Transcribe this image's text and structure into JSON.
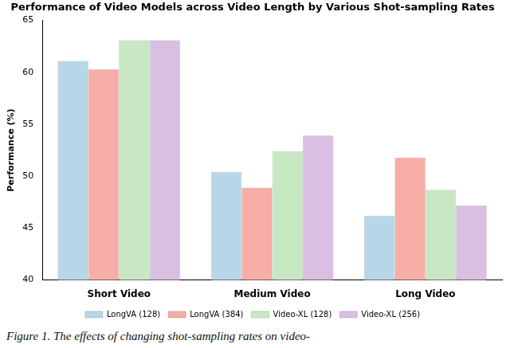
{
  "chart_data": {
    "type": "bar",
    "title": "Performance of Video Models across Video Length by Various Shot-sampling Rates",
    "y_label": "Performance (%)",
    "caption": "Figure 1. The effects of changing shot-sampling rates on video-",
    "categories": [
      "Short Video",
      "Medium Video",
      "Long Video"
    ],
    "series": [
      {
        "name": "LongVA (128)",
        "color": "#b7d7e8",
        "values": [
          61.1,
          50.4,
          46.2
        ]
      },
      {
        "name": "LongVA (384)",
        "color": "#f7aea6",
        "values": [
          60.3,
          48.9,
          51.8
        ]
      },
      {
        "name": "Video-XL (128)",
        "color": "#c8e8c4",
        "values": [
          63.1,
          52.4,
          48.7
        ]
      },
      {
        "name": "Video-XL (256)",
        "color": "#d9c0e2",
        "values": [
          63.1,
          53.9,
          47.2
        ]
      }
    ],
    "ylim": [
      40,
      65
    ],
    "yticks": [
      40,
      45,
      50,
      55,
      60,
      65
    ],
    "grid": false,
    "legend": "bottom"
  }
}
